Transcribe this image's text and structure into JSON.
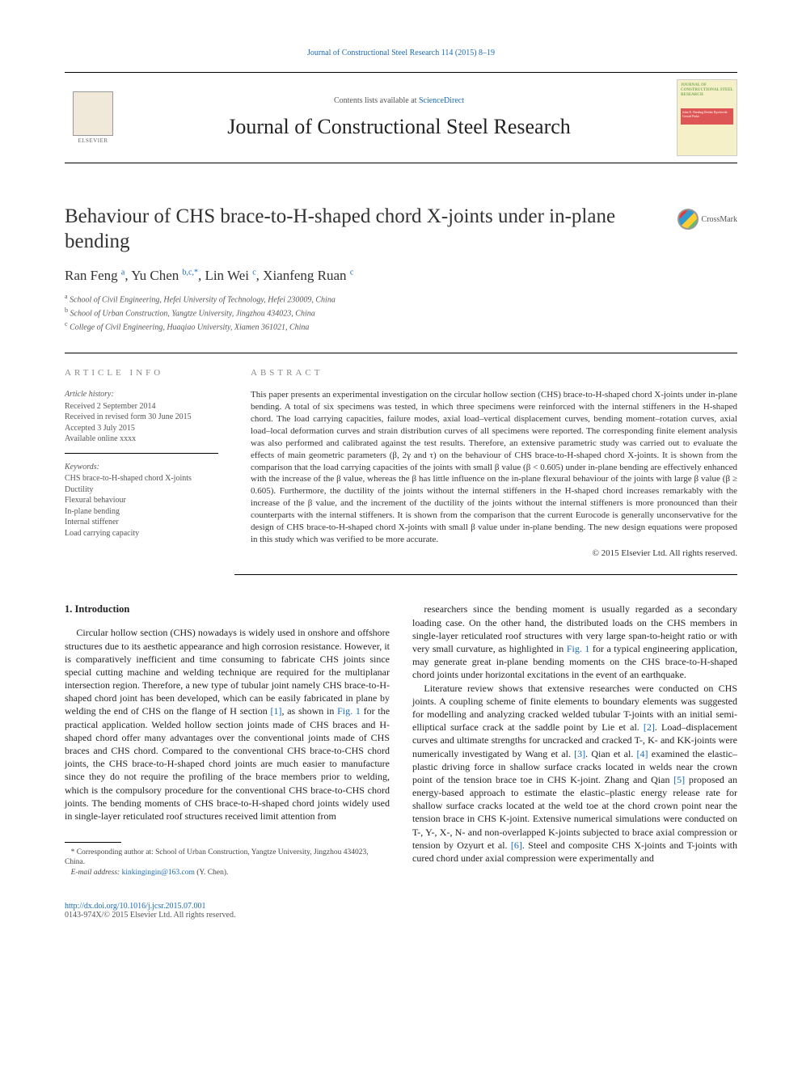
{
  "topLink": "Journal of Constructional Steel Research 114 (2015) 8–19",
  "masthead": {
    "elsevierLabel": "ELSEVIER",
    "contentsPrefix": "Contents lists available at ",
    "contentsLink": "ScienceDirect",
    "journalName": "Journal of Constructional Steel Research",
    "coverTitle": "JOURNAL OF CONSTRUCTIONAL STEEL RESEARCH",
    "coverNames": "John E. Harding\nReidar Bjorhovde\nGerard Parke"
  },
  "title": "Behaviour of CHS brace-to-H-shaped chord X-joints under in-plane bending",
  "crossmarkLabel": "CrossMark",
  "authorsHtml": "Ran Feng <sup>a</sup>, Yu Chen <sup>b,c,*</sup>, Lin Wei <sup>c</sup>, Xianfeng Ruan <sup>c</sup>",
  "affiliations": [
    {
      "sup": "a",
      "text": "School of Civil Engineering, Hefei University of Technology, Hefei 230009, China"
    },
    {
      "sup": "b",
      "text": "School of Urban Construction, Yangtze University, Jingzhou 434023, China"
    },
    {
      "sup": "c",
      "text": "College of Civil Engineering, Huaqiao University, Xiamen 361021, China"
    }
  ],
  "articleInfo": {
    "heading": "article info",
    "historyHead": "Article history:",
    "history": [
      "Received 2 September 2014",
      "Received in revised form 30 June 2015",
      "Accepted 3 July 2015",
      "Available online xxxx"
    ],
    "keywordsHead": "Keywords:",
    "keywords": [
      "CHS brace-to-H-shaped chord X-joints",
      "Ductility",
      "Flexural behaviour",
      "In-plane bending",
      "Internal stiffener",
      "Load carrying capacity"
    ]
  },
  "abstract": {
    "heading": "abstract",
    "text": "This paper presents an experimental investigation on the circular hollow section (CHS) brace-to-H-shaped chord X-joints under in-plane bending. A total of six specimens was tested, in which three specimens were reinforced with the internal stiffeners in the H-shaped chord. The load carrying capacities, failure modes, axial load–vertical displacement curves, bending moment–rotation curves, axial load–local deformation curves and strain distribution curves of all specimens were reported. The corresponding finite element analysis was also performed and calibrated against the test results. Therefore, an extensive parametric study was carried out to evaluate the effects of main geometric parameters (β, 2γ and τ) on the behaviour of CHS brace-to-H-shaped chord X-joints. It is shown from the comparison that the load carrying capacities of the joints with small β value (β < 0.605) under in-plane bending are effectively enhanced with the increase of the β value, whereas the β has little influence on the in-plane flexural behaviour of the joints with large β value (β ≥ 0.605). Furthermore, the ductility of the joints without the internal stiffeners in the H-shaped chord increases remarkably with the increase of the β value, and the increment of the ductility of the joints without the internal stiffeners is more pronounced than their counterparts with the internal stiffeners. It is shown from the comparison that the current Eurocode is generally unconservative for the design of CHS brace-to-H-shaped chord X-joints with small β value under in-plane bending. The new design equations were proposed in this study which was verified to be more accurate.",
    "copyright": "© 2015 Elsevier Ltd. All rights reserved."
  },
  "body": {
    "section1Heading": "1. Introduction",
    "leftParas": [
      "Circular hollow section (CHS) nowadays is widely used in onshore and offshore structures due to its aesthetic appearance and high corrosion resistance. However, it is comparatively inefficient and time consuming to fabricate CHS joints since special cutting machine and welding technique are required for the multiplanar intersection region. Therefore, a new type of tubular joint namely CHS brace-to-H-shaped chord joint has been developed, which can be easily fabricated in plane by welding the end of CHS on the flange of H section <span class=\"ref-link\">[1]</span>, as shown in <span class=\"ref-link\">Fig. 1</span> for the practical application. Welded hollow section joints made of CHS braces and H-shaped chord offer many advantages over the conventional joints made of CHS braces and CHS chord. Compared to the conventional CHS brace-to-CHS chord joints, the CHS brace-to-H-shaped chord joints are much easier to manufacture since they do not require the profiling of the brace members prior to welding, which is the compulsory procedure for the conventional CHS brace-to-CHS chord joints. The bending moments of CHS brace-to-H-shaped chord joints widely used in single-layer reticulated roof structures received limit attention from"
    ],
    "rightParas": [
      "researchers since the bending moment is usually regarded as a secondary loading case. On the other hand, the distributed loads on the CHS members in single-layer reticulated roof structures with very large span-to-height ratio or with very small curvature, as highlighted in <span class=\"ref-link\">Fig. 1</span> for a typical engineering application, may generate great in-plane bending moments on the CHS brace-to-H-shaped chord joints under horizontal excitations in the event of an earthquake.",
      "Literature review shows that extensive researches were conducted on CHS joints. A coupling scheme of finite elements to boundary elements was suggested for modelling and analyzing cracked welded tubular T-joints with an initial semi-elliptical surface crack at the saddle point by Lie et al. <span class=\"ref-link\">[2]</span>. Load–displacement curves and ultimate strengths for uncracked and cracked T-, K- and KK-joints were numerically investigated by Wang et al. <span class=\"ref-link\">[3]</span>. Qian et al. <span class=\"ref-link\">[4]</span> examined the elastic–plastic driving force in shallow surface cracks located in welds near the crown point of the tension brace toe in CHS K-joint. Zhang and Qian <span class=\"ref-link\">[5]</span> proposed an energy-based approach to estimate the elastic–plastic energy release rate for shallow surface cracks located at the weld toe at the chord crown point near the tension brace in CHS K-joint. Extensive numerical simulations were conducted on T-, Y-, X-, N- and non-overlapped K-joints subjected to brace axial compression or tension by Ozyurt et al. <span class=\"ref-link\">[6]</span>. Steel and composite CHS X-joints and T-joints with cured chord under axial compression were experimentally and"
    ]
  },
  "footnote": {
    "corr": "* Corresponding author at: School of Urban Construction, Yangtze University, Jingzhou 434023, China.",
    "emailLabel": "E-mail address:",
    "email": "kinkingingin@163.com",
    "emailAfter": "(Y. Chen)."
  },
  "footer": {
    "doi": "http://dx.doi.org/10.1016/j.jcsr.2015.07.001",
    "issn": "0143-974X/© 2015 Elsevier Ltd. All rights reserved."
  },
  "colors": {
    "link": "#1a6bb5",
    "textMuted": "#555",
    "text": "#222"
  }
}
